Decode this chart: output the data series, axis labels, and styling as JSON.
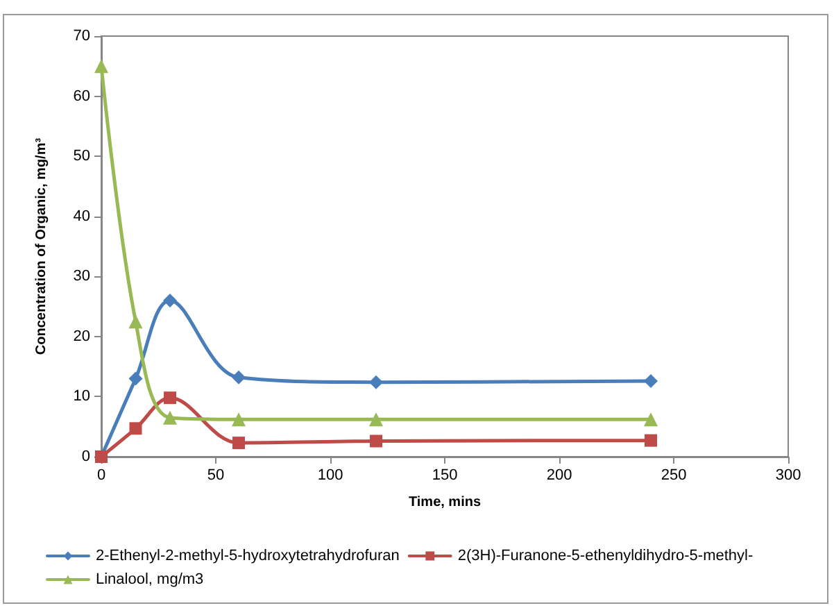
{
  "chart_data": {
    "type": "line",
    "xlabel": "Time, mins",
    "ylabel": "Concentration of Organic, mg/m³",
    "x": [
      0,
      15,
      30,
      60,
      120,
      240
    ],
    "series": [
      {
        "name": "2-Ethenyl-2-methyl-5-hydroxytetrahydrofuran",
        "color": "#4a7ebb",
        "marker": "diamond",
        "values": [
          0,
          13,
          26,
          13.2,
          12.4,
          12.6
        ]
      },
      {
        "name": "2(3H)-Furanone-5-ethenyldihydro-5-methyl-",
        "color": "#be4b48",
        "marker": "square",
        "values": [
          0,
          4.7,
          9.8,
          2.3,
          2.6,
          2.7
        ]
      },
      {
        "name": "Linalool, mg/m3",
        "color": "#98b954",
        "marker": "triangle",
        "values": [
          65,
          22.5,
          6.5,
          6.2,
          6.2,
          6.2
        ]
      }
    ],
    "xlim": [
      0,
      300
    ],
    "xticks": [
      0,
      50,
      100,
      150,
      200,
      250,
      300
    ],
    "ylim": [
      0,
      70
    ],
    "yticks": [
      0,
      10,
      20,
      30,
      40,
      50,
      60,
      70
    ],
    "grid": false,
    "legend": "bottom",
    "line_style": "solid"
  }
}
